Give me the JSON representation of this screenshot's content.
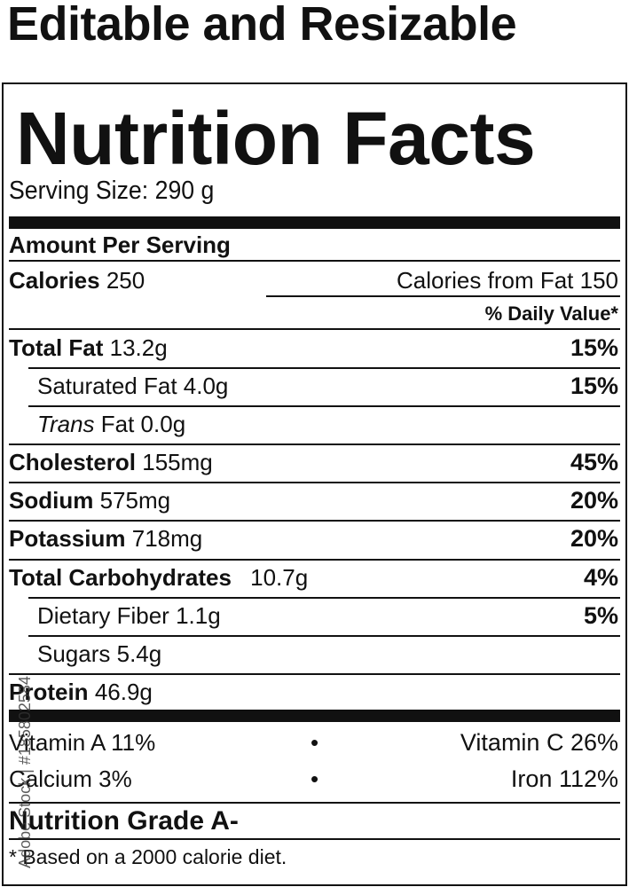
{
  "header": "Editable and Resizable",
  "title": "Nutrition Facts",
  "serving": "Serving Size: 290 g",
  "amount_per_serving": "Amount Per Serving",
  "calories_label": "Calories",
  "calories": "250",
  "calories_fat": "Calories from Fat 150",
  "dv_header": "% Daily Value*",
  "rows": [
    {
      "name": "Total Fat",
      "amt": "13.2g",
      "dv": "15%",
      "bold": true
    },
    {
      "name": "Saturated Fat",
      "amt": "4.0g",
      "dv": "15%",
      "bold": false
    },
    {
      "name": "Trans",
      "suffix": "Fat 0.0g",
      "dv": "",
      "bold": false
    },
    {
      "name": "Cholesterol",
      "amt": "155mg",
      "dv": "45%",
      "bold": true
    },
    {
      "name": "Sodium",
      "amt": "575mg",
      "dv": "20%",
      "bold": true
    },
    {
      "name": "Potassium",
      "amt": "718mg",
      "dv": "20%",
      "bold": true
    },
    {
      "name": "Total Carbohydrates",
      "amt": "10.7g",
      "dv": "4%",
      "bold": true
    },
    {
      "name": "Dietary Fiber",
      "amt": "1.1g",
      "dv": "5%",
      "bold": false
    },
    {
      "name": "Sugars",
      "amt": "5.4g",
      "dv": "",
      "bold": false
    },
    {
      "name": "Protein",
      "amt": "46.9g",
      "dv": "",
      "bold": true
    }
  ],
  "vitamins": {
    "a": "Vitamin A 11%",
    "c": "Vitamin C 26%",
    "calcium": "Calcium 3%",
    "iron": "Iron 112%",
    "bullet": "•"
  },
  "grade": "Nutrition Grade A-",
  "footnote": "* Based on a 2000 calorie diet.",
  "watermark": "Adobe Stock | #185802584"
}
